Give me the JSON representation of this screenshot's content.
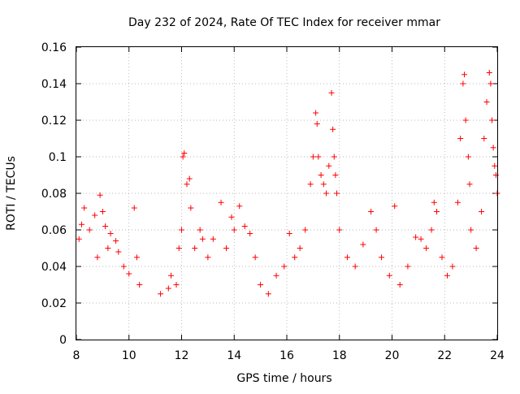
{
  "chart_data": {
    "type": "scatter",
    "title": "Day 232 of 2024, Rate Of TEC Index for receiver mmar",
    "xlabel": "GPS time / hours",
    "ylabel": "ROTI / TECUs",
    "xlim": [
      8,
      24
    ],
    "ylim": [
      0,
      0.16
    ],
    "xticks": [
      8,
      10,
      12,
      14,
      16,
      18,
      20,
      22,
      24
    ],
    "xtick_labels": [
      "8",
      "10",
      "12",
      "14",
      "16",
      "18",
      "20",
      "22",
      "24"
    ],
    "yticks": [
      0,
      0.02,
      0.04,
      0.06,
      0.08,
      0.1,
      0.12,
      0.14,
      0.16
    ],
    "ytick_labels": [
      "0",
      "0.02",
      "0.04",
      "0.06",
      "0.08",
      "0.1",
      "0.12",
      "0.14",
      "0.16"
    ],
    "grid": true,
    "marker": "+",
    "marker_color": "#ff0000",
    "series": [
      {
        "name": "ROTI",
        "points": [
          [
            8.1,
            0.055
          ],
          [
            8.2,
            0.063
          ],
          [
            8.3,
            0.072
          ],
          [
            8.5,
            0.06
          ],
          [
            8.7,
            0.068
          ],
          [
            8.8,
            0.045
          ],
          [
            8.9,
            0.079
          ],
          [
            9.0,
            0.07
          ],
          [
            9.1,
            0.062
          ],
          [
            9.2,
            0.05
          ],
          [
            9.3,
            0.058
          ],
          [
            9.5,
            0.054
          ],
          [
            9.6,
            0.048
          ],
          [
            9.8,
            0.04
          ],
          [
            10.0,
            0.036
          ],
          [
            10.2,
            0.072
          ],
          [
            10.3,
            0.045
          ],
          [
            10.4,
            0.03
          ],
          [
            11.2,
            0.025
          ],
          [
            11.5,
            0.028
          ],
          [
            11.6,
            0.035
          ],
          [
            11.8,
            0.03
          ],
          [
            11.9,
            0.05
          ],
          [
            12.0,
            0.06
          ],
          [
            12.05,
            0.1
          ],
          [
            12.1,
            0.102
          ],
          [
            12.2,
            0.085
          ],
          [
            12.3,
            0.088
          ],
          [
            12.35,
            0.072
          ],
          [
            12.5,
            0.05
          ],
          [
            12.7,
            0.06
          ],
          [
            12.8,
            0.055
          ],
          [
            13.0,
            0.045
          ],
          [
            13.2,
            0.055
          ],
          [
            13.5,
            0.075
          ],
          [
            13.7,
            0.05
          ],
          [
            13.9,
            0.067
          ],
          [
            14.0,
            0.06
          ],
          [
            14.2,
            0.073
          ],
          [
            14.4,
            0.062
          ],
          [
            14.6,
            0.058
          ],
          [
            14.8,
            0.045
          ],
          [
            15.0,
            0.03
          ],
          [
            15.3,
            0.025
          ],
          [
            15.6,
            0.035
          ],
          [
            15.9,
            0.04
          ],
          [
            16.1,
            0.058
          ],
          [
            16.3,
            0.045
          ],
          [
            16.5,
            0.05
          ],
          [
            16.7,
            0.06
          ],
          [
            16.9,
            0.085
          ],
          [
            17.0,
            0.1
          ],
          [
            17.1,
            0.124
          ],
          [
            17.15,
            0.118
          ],
          [
            17.2,
            0.1
          ],
          [
            17.3,
            0.09
          ],
          [
            17.4,
            0.085
          ],
          [
            17.5,
            0.08
          ],
          [
            17.6,
            0.095
          ],
          [
            17.7,
            0.135
          ],
          [
            17.75,
            0.115
          ],
          [
            17.8,
            0.1
          ],
          [
            17.85,
            0.09
          ],
          [
            17.9,
            0.08
          ],
          [
            18.0,
            0.06
          ],
          [
            18.3,
            0.045
          ],
          [
            18.6,
            0.04
          ],
          [
            18.9,
            0.052
          ],
          [
            19.2,
            0.07
          ],
          [
            19.4,
            0.06
          ],
          [
            19.6,
            0.045
          ],
          [
            19.9,
            0.035
          ],
          [
            20.1,
            0.073
          ],
          [
            20.3,
            0.03
          ],
          [
            20.6,
            0.04
          ],
          [
            20.9,
            0.056
          ],
          [
            21.1,
            0.055
          ],
          [
            21.3,
            0.05
          ],
          [
            21.5,
            0.06
          ],
          [
            21.6,
            0.075
          ],
          [
            21.7,
            0.07
          ],
          [
            21.9,
            0.045
          ],
          [
            22.1,
            0.035
          ],
          [
            22.3,
            0.04
          ],
          [
            22.5,
            0.075
          ],
          [
            22.6,
            0.11
          ],
          [
            22.7,
            0.14
          ],
          [
            22.75,
            0.145
          ],
          [
            22.8,
            0.12
          ],
          [
            22.9,
            0.1
          ],
          [
            22.95,
            0.085
          ],
          [
            23.0,
            0.06
          ],
          [
            23.2,
            0.05
          ],
          [
            23.4,
            0.07
          ],
          [
            23.5,
            0.11
          ],
          [
            23.6,
            0.13
          ],
          [
            23.7,
            0.146
          ],
          [
            23.75,
            0.14
          ],
          [
            23.8,
            0.12
          ],
          [
            23.85,
            0.105
          ],
          [
            23.9,
            0.095
          ],
          [
            23.95,
            0.09
          ],
          [
            24.0,
            0.08
          ]
        ]
      }
    ]
  }
}
